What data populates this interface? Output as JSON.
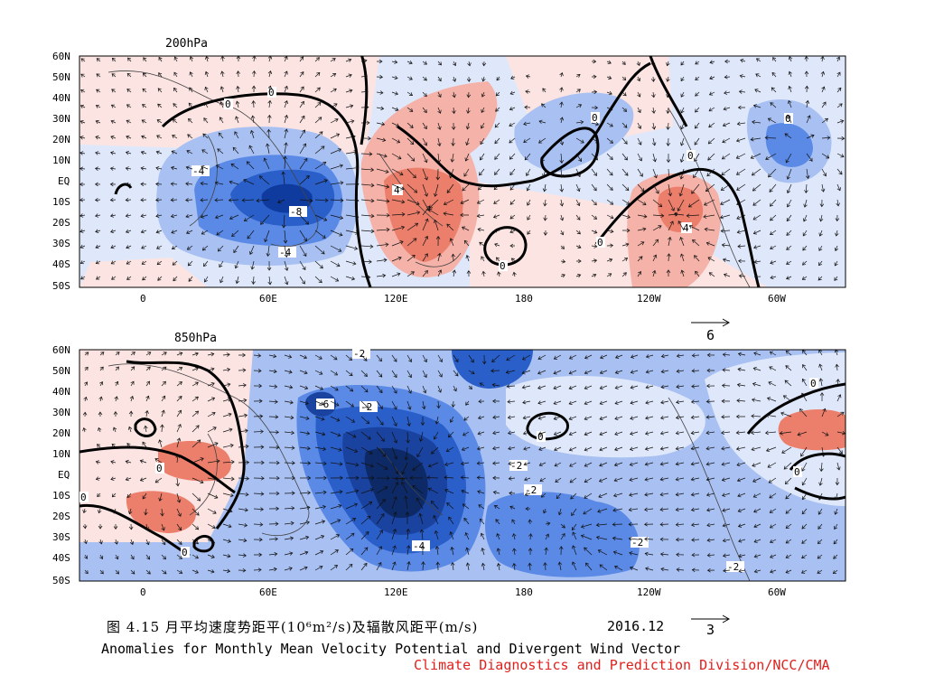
{
  "figure": {
    "caption_cn": "图 4.15  月平均速度势距平(10⁶m²/s)及辐散风距平(m/s)",
    "caption_date": "2016.12",
    "caption_en": "Anomalies for Monthly Mean Velocity Potential and Divergent Wind Vector",
    "credit": "Climate Diagnostics and Prediction Division/NCC/CMA"
  },
  "panels": [
    {
      "title": "200hPa",
      "ref_vector": "6",
      "lat_labels": [
        "60N",
        "50N",
        "40N",
        "30N",
        "20N",
        "10N",
        "EQ",
        "10S",
        "20S",
        "30S",
        "40S",
        "50S"
      ],
      "lon_labels": [
        "0",
        "60E",
        "120E",
        "180",
        "120W",
        "60W"
      ],
      "contour_labels": [
        "0",
        "0",
        "0",
        "0",
        "0",
        "0",
        "-4",
        "-8",
        "-4",
        "4",
        "4",
        "0",
        "-4"
      ]
    },
    {
      "title": "850hPa",
      "ref_vector": "3",
      "lat_labels": [
        "60N",
        "50N",
        "40N",
        "30N",
        "20N",
        "10N",
        "EQ",
        "10S",
        "20S",
        "30S",
        "40S",
        "50S"
      ],
      "lon_labels": [
        "0",
        "60E",
        "120E",
        "180",
        "120W",
        "60W"
      ],
      "contour_labels": [
        "-2",
        "-6",
        "-2",
        "0",
        "0",
        "-2",
        "-2",
        "-4",
        "-2",
        "-2",
        "0",
        "0",
        "0",
        "0"
      ]
    }
  ],
  "colors": {
    "strong_neg": "#0d2a66",
    "neg3": "#2a5fc9",
    "neg2": "#5b8ae6",
    "neg1": "#a9c1f2",
    "neg0": "#dfe8fb",
    "pos0": "#fbe4e2",
    "pos1": "#f5b2a8",
    "pos2": "#ec7f6b",
    "credit": "#e0201c"
  }
}
